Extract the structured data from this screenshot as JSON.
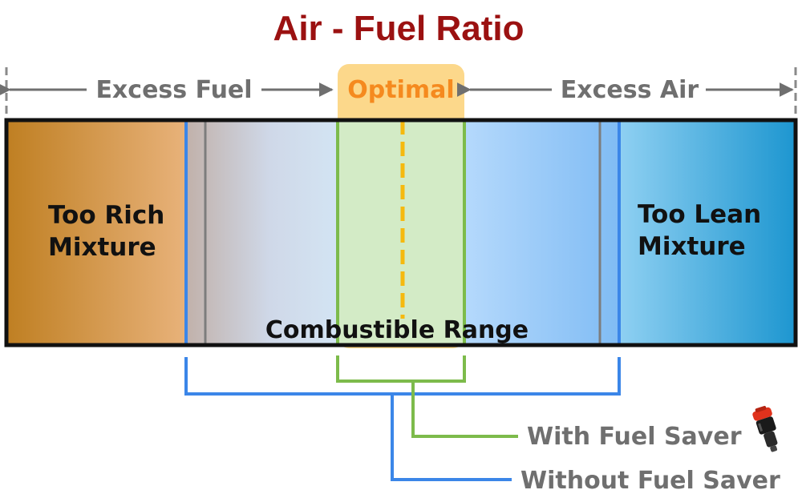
{
  "title": "Air - Fuel Ratio",
  "top_labels": {
    "excess_fuel": "Excess Fuel",
    "optimal": "Optimal",
    "excess_air": "Excess Air"
  },
  "zones": {
    "rich": [
      "Too Rich",
      "Mixture"
    ],
    "lean": [
      "Too Lean",
      "Mixture"
    ],
    "combustible": "Combustible Range"
  },
  "legend": {
    "with": "With Fuel Saver",
    "without": "Without Fuel Saver"
  },
  "colors": {
    "title": "#9b1111",
    "grey_text": "#6f6f6f",
    "optimal_text": "#f58a1f",
    "optimal_bg": "#fcd88b",
    "blue_line": "#3b86e8",
    "green_line": "#7dbb4b",
    "orange_dash": "#f5b90f",
    "rich_gradient": [
      "#bf7f22",
      "#e8b27a"
    ],
    "lean_gradient": [
      "#8fd0f2",
      "#1d96d0"
    ]
  },
  "icons": [
    "fuel-saver-device-icon"
  ]
}
